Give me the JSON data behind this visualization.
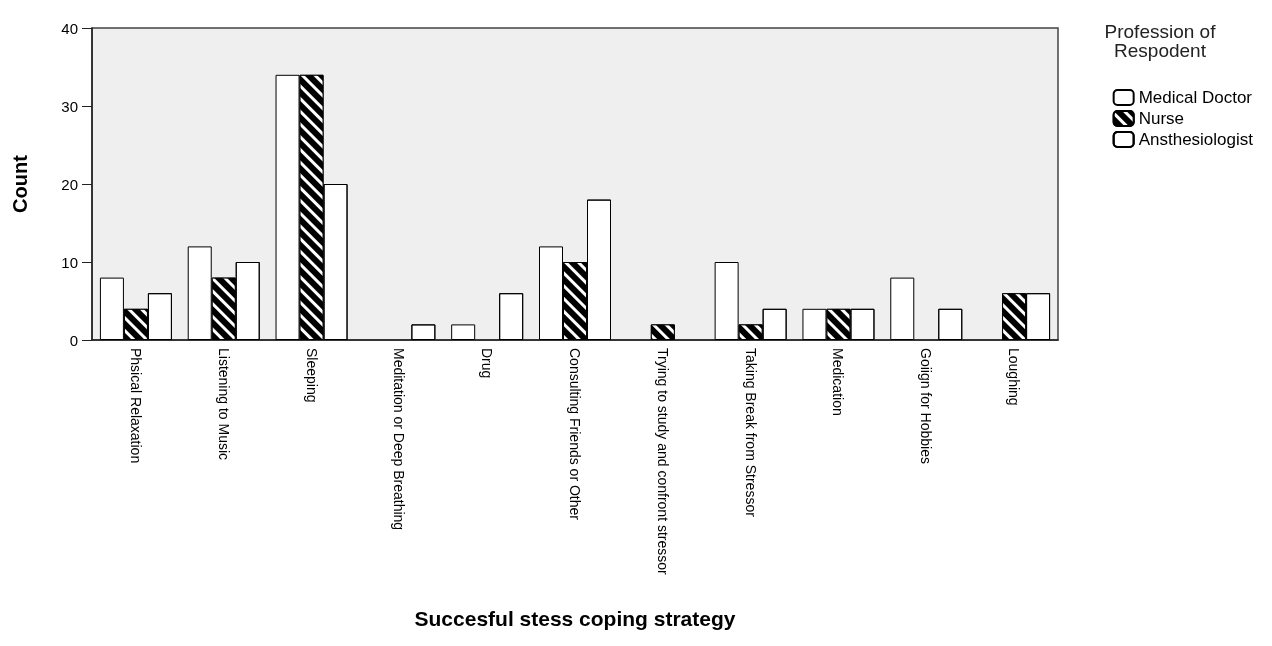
{
  "chart_data": {
    "type": "bar",
    "xlabel": "Succesful stess coping strategy",
    "ylabel": "Count",
    "legend_title": "Profession of\nRespodent",
    "categories": [
      "Phsical Relaxation",
      "Listening to Music",
      "Sleeping",
      "Meditation or Deep Breathing",
      "Drug",
      "Consulting Friends or Other",
      "Trying to study and confront stressor",
      "Taking Break from Stressor",
      "Medication",
      "Goiign for Hobbies",
      "Loughing"
    ],
    "series": [
      {
        "name": "Medical Doctor",
        "color": "#ffffff",
        "values": [
          8,
          12,
          34,
          0,
          2,
          12,
          0,
          10,
          4,
          8,
          0
        ]
      },
      {
        "name": "Nurse",
        "color": "#000000",
        "values": [
          4,
          8,
          34,
          0,
          0,
          10,
          2,
          2,
          4,
          0,
          6
        ]
      },
      {
        "name": "Ansthesiologist",
        "color": "#ffffff",
        "values": [
          6,
          10,
          20,
          2,
          6,
          18,
          0,
          4,
          4,
          4,
          6
        ]
      }
    ],
    "ylim": [
      0,
      40
    ],
    "yticks": [
      0,
      10,
      20,
      30,
      40
    ],
    "grid": false,
    "legend": "right"
  }
}
